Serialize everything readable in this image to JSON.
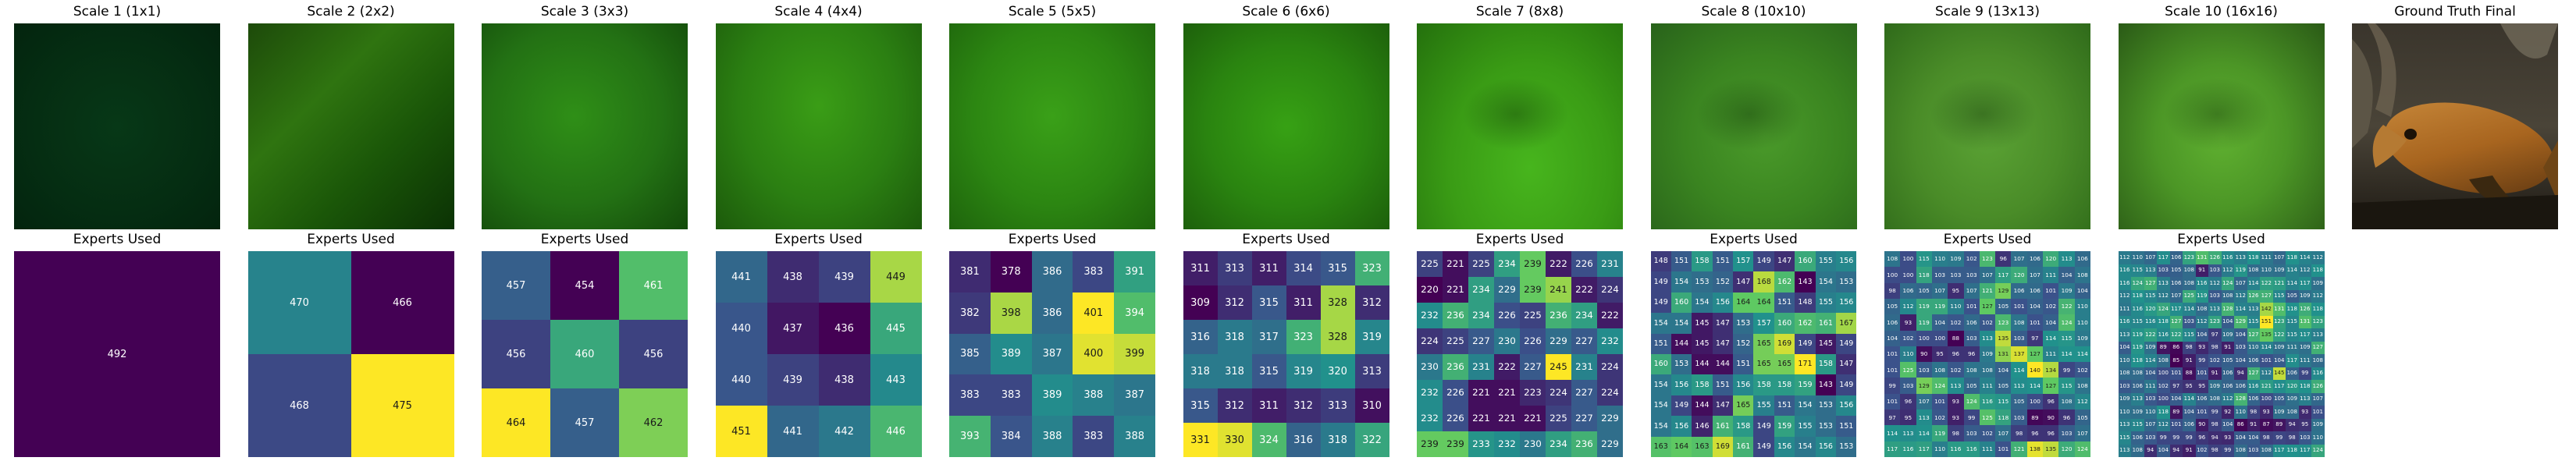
{
  "figure": {
    "top_titles": [
      "Scale 1 (1x1)",
      "Scale 2 (2x2)",
      "Scale 3 (3x3)",
      "Scale 4 (4x4)",
      "Scale 5 (5x5)",
      "Scale 6 (6x6)",
      "Scale 7 (8x8)",
      "Scale 8 (10x10)",
      "Scale 9 (13x13)",
      "Scale 10 (16x16)"
    ],
    "ground_truth_title": "Ground Truth Final",
    "bottom_title": "Experts Used",
    "colormap": [
      "#440154",
      "#3b528b",
      "#21918c",
      "#5ec962",
      "#fde725"
    ]
  },
  "chart_data": [
    {
      "type": "heatmap",
      "grid": [
        1,
        1
      ],
      "values": [
        [
          492
        ]
      ]
    },
    {
      "type": "heatmap",
      "grid": [
        2,
        2
      ],
      "values": [
        [
          470,
          466
        ],
        [
          468,
          475
        ]
      ]
    },
    {
      "type": "heatmap",
      "grid": [
        3,
        3
      ],
      "values": [
        [
          457,
          454,
          461
        ],
        [
          456,
          460,
          456
        ],
        [
          464,
          457,
          462
        ]
      ]
    },
    {
      "type": "heatmap",
      "grid": [
        4,
        4
      ],
      "values": [
        [
          441,
          438,
          439,
          449
        ],
        [
          440,
          437,
          436,
          445
        ],
        [
          440,
          439,
          438,
          443
        ],
        [
          451,
          441,
          442,
          446
        ]
      ]
    },
    {
      "type": "heatmap",
      "grid": [
        5,
        5
      ],
      "values": [
        [
          381,
          378,
          386,
          383,
          391
        ],
        [
          382,
          398,
          386,
          401,
          394
        ],
        [
          385,
          389,
          387,
          400,
          399
        ],
        [
          383,
          383,
          389,
          388,
          387
        ],
        [
          393,
          384,
          388,
          383,
          388
        ]
      ]
    },
    {
      "type": "heatmap",
      "grid": [
        6,
        6
      ],
      "values": [
        [
          311,
          313,
          311,
          314,
          315,
          323
        ],
        [
          309,
          312,
          315,
          311,
          328,
          312
        ],
        [
          316,
          318,
          317,
          323,
          328,
          319
        ],
        [
          318,
          318,
          315,
          319,
          320,
          313
        ],
        [
          315,
          312,
          311,
          312,
          313,
          310
        ],
        [
          331,
          330,
          324,
          316,
          318,
          322
        ]
      ]
    },
    {
      "type": "heatmap",
      "grid": [
        8,
        8
      ],
      "values": [
        [
          225,
          221,
          225,
          234,
          239,
          222,
          226,
          231
        ],
        [
          220,
          221,
          234,
          229,
          239,
          241,
          222,
          224
        ],
        [
          232,
          236,
          234,
          226,
          225,
          236,
          234,
          222
        ],
        [
          224,
          225,
          227,
          230,
          226,
          229,
          227,
          232
        ],
        [
          230,
          236,
          231,
          222,
          227,
          245,
          231,
          224
        ],
        [
          232,
          226,
          221,
          221,
          223,
          224,
          227,
          224
        ],
        [
          232,
          226,
          221,
          221,
          221,
          225,
          227,
          229
        ],
        [
          239,
          239,
          233,
          232,
          230,
          234,
          236,
          229
        ]
      ]
    },
    {
      "type": "heatmap",
      "grid": [
        10,
        10
      ],
      "values": [
        [
          148,
          151,
          158,
          151,
          157,
          149,
          147,
          160,
          155,
          156
        ],
        [
          149,
          154,
          153,
          152,
          147,
          168,
          162,
          143,
          154,
          153
        ],
        [
          149,
          160,
          154,
          156,
          164,
          164,
          151,
          148,
          155,
          156
        ],
        [
          154,
          154,
          145,
          147,
          153,
          157,
          160,
          162,
          161,
          167
        ],
        [
          151,
          144,
          145,
          147,
          152,
          165,
          169,
          149,
          145,
          149
        ],
        [
          160,
          153,
          144,
          144,
          151,
          165,
          165,
          171,
          158,
          147
        ],
        [
          154,
          156,
          158,
          151,
          156,
          158,
          158,
          159,
          143,
          149
        ],
        [
          154,
          149,
          144,
          147,
          165,
          155,
          151,
          154,
          153,
          156
        ],
        [
          154,
          156,
          146,
          161,
          158,
          149,
          159,
          155,
          153,
          151
        ],
        [
          163,
          164,
          163,
          169,
          161,
          149,
          156,
          154,
          156,
          153
        ]
      ]
    },
    {
      "type": "heatmap",
      "grid": [
        13,
        13
      ],
      "values": [
        [
          108,
          100,
          115,
          110,
          109,
          102,
          123,
          96,
          107,
          106,
          120,
          113,
          106
        ],
        [
          100,
          100,
          118,
          103,
          103,
          103,
          107,
          117,
          120,
          107,
          111,
          104,
          108
        ],
        [
          98,
          106,
          105,
          107,
          95,
          107,
          121,
          129,
          106,
          106,
          101,
          109,
          104
        ],
        [
          105,
          112,
          119,
          119,
          110,
          101,
          127,
          105,
          101,
          104,
          102,
          122,
          110
        ],
        [
          106,
          93,
          119,
          104,
          102,
          106,
          102,
          123,
          108,
          101,
          104,
          124,
          110
        ],
        [
          104,
          102,
          100,
          100,
          88,
          103,
          113,
          135,
          103,
          97,
          114,
          115,
          109
        ],
        [
          101,
          110,
          90,
          95,
          96,
          96,
          109,
          131,
          137,
          127,
          111,
          114,
          114
        ],
        [
          101,
          125,
          103,
          108,
          102,
          108,
          108,
          104,
          114,
          140,
          134,
          99,
          102
        ],
        [
          99,
          103,
          129,
          124,
          113,
          105,
          111,
          105,
          113,
          114,
          127,
          115,
          108
        ],
        [
          101,
          96,
          107,
          101,
          93,
          124,
          116,
          115,
          105,
          100,
          96,
          108,
          112
        ],
        [
          97,
          95,
          113,
          102,
          93,
          99,
          125,
          118,
          103,
          89,
          90,
          96,
          105
        ],
        [
          114,
          113,
          114,
          119,
          98,
          103,
          102,
          107,
          98,
          96,
          96,
          103,
          107
        ],
        [
          117,
          116,
          117,
          110,
          116,
          116,
          111,
          101,
          121,
          138,
          135,
          120,
          124
        ]
      ]
    },
    {
      "type": "heatmap",
      "grid": [
        16,
        16
      ],
      "values": [
        [
          112,
          110,
          107,
          117,
          106,
          123,
          131,
          126,
          116,
          113,
          118,
          111,
          107,
          118,
          114,
          112
        ],
        [
          116,
          115,
          113,
          103,
          105,
          108,
          91,
          103,
          112,
          119,
          108,
          110,
          109,
          114,
          112,
          118
        ],
        [
          116,
          124,
          127,
          113,
          106,
          108,
          116,
          112,
          124,
          107,
          114,
          122,
          121,
          114,
          117,
          109
        ],
        [
          112,
          118,
          115,
          112,
          107,
          125,
          119,
          103,
          108,
          112,
          126,
          127,
          115,
          105,
          109,
          112
        ],
        [
          111,
          116,
          120,
          124,
          117,
          114,
          108,
          113,
          128,
          114,
          113,
          142,
          131,
          118,
          126,
          118
        ],
        [
          116,
          115,
          116,
          118,
          127,
          103,
          112,
          123,
          104,
          129,
          115,
          151,
          123,
          115,
          131,
          123
        ],
        [
          113,
          119,
          122,
          116,
          122,
          115,
          104,
          97,
          109,
          104,
          127,
          135,
          122,
          115,
          117,
          113
        ],
        [
          104,
          119,
          109,
          89,
          86,
          98,
          93,
          98,
          91,
          103,
          110,
          114,
          109,
          111,
          109,
          127
        ],
        [
          110,
          118,
          114,
          108,
          85,
          91,
          99,
          102,
          105,
          104,
          106,
          101,
          104,
          117,
          111,
          108
        ],
        [
          108,
          108,
          104,
          100,
          101,
          88,
          101,
          91,
          106,
          94,
          127,
          112,
          145,
          106,
          99,
          116
        ],
        [
          103,
          106,
          111,
          102,
          97,
          95,
          95,
          109,
          106,
          106,
          116,
          121,
          117,
          120,
          118,
          126
        ],
        [
          109,
          113,
          103,
          100,
          104,
          114,
          106,
          108,
          112,
          128,
          106,
          100,
          105,
          109,
          113,
          107
        ],
        [
          110,
          109,
          110,
          118,
          89,
          104,
          101,
          99,
          92,
          110,
          98,
          93,
          109,
          108,
          93,
          101
        ],
        [
          113,
          115,
          107,
          112,
          101,
          106,
          90,
          98,
          104,
          86,
          91,
          87,
          89,
          94,
          95,
          109
        ],
        [
          115,
          106,
          103,
          99,
          99,
          99,
          96,
          94,
          93,
          104,
          104,
          98,
          99,
          98,
          103,
          110
        ],
        [
          113,
          108,
          94,
          104,
          94,
          91,
          102,
          98,
          99,
          108,
          103,
          108,
          117,
          118,
          117,
          124
        ]
      ]
    }
  ]
}
